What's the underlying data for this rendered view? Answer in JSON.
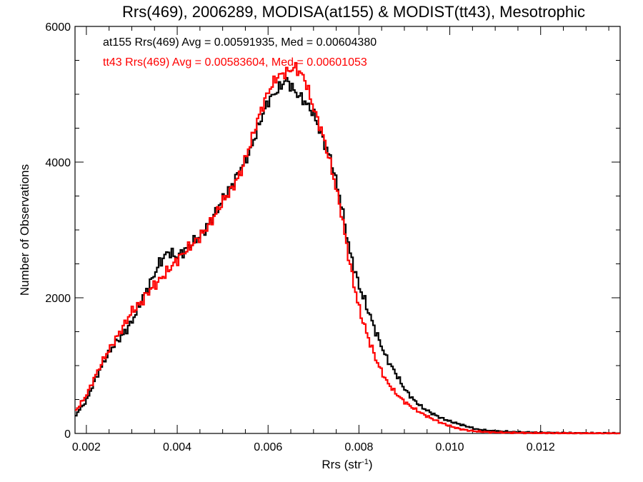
{
  "chart_data": {
    "type": "line",
    "title": "Rrs(469), 2006289, MODISA(at155) & MODIST(tt43), Mesotrophic",
    "xlabel": "Rrs (str",
    "xlabel_sup": "-1",
    "xlabel_close": ")",
    "ylabel": "Number of Observations",
    "xlim": [
      0.00175,
      0.01375
    ],
    "ylim": [
      0,
      6000
    ],
    "x_ticks": [
      {
        "value": 0.002,
        "label": "0.002"
      },
      {
        "value": 0.004,
        "label": "0.004"
      },
      {
        "value": 0.006,
        "label": "0.006"
      },
      {
        "value": 0.008,
        "label": "0.008"
      },
      {
        "value": 0.01,
        "label": "0.010"
      },
      {
        "value": 0.012,
        "label": "0.012"
      }
    ],
    "y_ticks": [
      {
        "value": 0,
        "label": "0"
      },
      {
        "value": 2000,
        "label": "2000"
      },
      {
        "value": 4000,
        "label": "4000"
      },
      {
        "value": 6000,
        "label": "6000"
      }
    ],
    "step": "histogram",
    "series": [
      {
        "name": "at155",
        "color": "#000000",
        "annotation": "at155 Rrs(469) Avg = 0.00591935, Med = 0.00604380",
        "points": [
          [
            0.00175,
            260
          ],
          [
            0.002,
            480
          ],
          [
            0.0022,
            800
          ],
          [
            0.0024,
            1080
          ],
          [
            0.0026,
            1300
          ],
          [
            0.0028,
            1450
          ],
          [
            0.003,
            1640
          ],
          [
            0.0032,
            1950
          ],
          [
            0.0034,
            2200
          ],
          [
            0.0036,
            2500
          ],
          [
            0.0038,
            2680
          ],
          [
            0.004,
            2600
          ],
          [
            0.0042,
            2720
          ],
          [
            0.0044,
            2850
          ],
          [
            0.0046,
            2990
          ],
          [
            0.0048,
            3200
          ],
          [
            0.005,
            3450
          ],
          [
            0.0052,
            3650
          ],
          [
            0.0054,
            3900
          ],
          [
            0.0056,
            4150
          ],
          [
            0.0058,
            4550
          ],
          [
            0.006,
            4900
          ],
          [
            0.0062,
            5050
          ],
          [
            0.0064,
            5220
          ],
          [
            0.0066,
            5030
          ],
          [
            0.0068,
            4900
          ],
          [
            0.007,
            4720
          ],
          [
            0.0072,
            4350
          ],
          [
            0.0074,
            4000
          ],
          [
            0.0076,
            3420
          ],
          [
            0.0078,
            2680
          ],
          [
            0.008,
            2180
          ],
          [
            0.0082,
            1820
          ],
          [
            0.0084,
            1450
          ],
          [
            0.0086,
            1120
          ],
          [
            0.0088,
            900
          ],
          [
            0.009,
            660
          ],
          [
            0.0092,
            500
          ],
          [
            0.0094,
            380
          ],
          [
            0.0096,
            300
          ],
          [
            0.0098,
            230
          ],
          [
            0.01,
            180
          ],
          [
            0.0102,
            140
          ],
          [
            0.0104,
            100
          ],
          [
            0.0106,
            60
          ],
          [
            0.0108,
            45
          ],
          [
            0.011,
            35
          ],
          [
            0.0114,
            22
          ],
          [
            0.0118,
            15
          ],
          [
            0.0122,
            10
          ],
          [
            0.0126,
            6
          ],
          [
            0.013,
            4
          ],
          [
            0.01375,
            2
          ]
        ]
      },
      {
        "name": "tt43",
        "color": "#ff0000",
        "annotation": "tt43 Rrs(469) Avg = 0.00583604, Med = 0.00601053",
        "points": [
          [
            0.00175,
            320
          ],
          [
            0.002,
            560
          ],
          [
            0.0022,
            850
          ],
          [
            0.0024,
            1120
          ],
          [
            0.0026,
            1340
          ],
          [
            0.0028,
            1560
          ],
          [
            0.003,
            1800
          ],
          [
            0.0032,
            1920
          ],
          [
            0.0034,
            2120
          ],
          [
            0.0036,
            2250
          ],
          [
            0.0038,
            2400
          ],
          [
            0.004,
            2560
          ],
          [
            0.0042,
            2700
          ],
          [
            0.0044,
            2830
          ],
          [
            0.0046,
            2980
          ],
          [
            0.0048,
            3180
          ],
          [
            0.005,
            3420
          ],
          [
            0.0052,
            3600
          ],
          [
            0.0054,
            3850
          ],
          [
            0.0056,
            4250
          ],
          [
            0.0058,
            4680
          ],
          [
            0.006,
            5030
          ],
          [
            0.0062,
            5260
          ],
          [
            0.0064,
            5320
          ],
          [
            0.0066,
            5400
          ],
          [
            0.0068,
            5240
          ],
          [
            0.007,
            4800
          ],
          [
            0.0072,
            4420
          ],
          [
            0.0074,
            3900
          ],
          [
            0.0076,
            3300
          ],
          [
            0.0078,
            2500
          ],
          [
            0.008,
            1850
          ],
          [
            0.0082,
            1420
          ],
          [
            0.0084,
            1050
          ],
          [
            0.0086,
            780
          ],
          [
            0.0088,
            600
          ],
          [
            0.009,
            470
          ],
          [
            0.0092,
            370
          ],
          [
            0.0094,
            290
          ],
          [
            0.0096,
            220
          ],
          [
            0.0098,
            160
          ],
          [
            0.01,
            110
          ],
          [
            0.0102,
            70
          ],
          [
            0.0104,
            45
          ],
          [
            0.0106,
            30
          ],
          [
            0.0108,
            22
          ],
          [
            0.011,
            16
          ],
          [
            0.0114,
            10
          ],
          [
            0.0118,
            7
          ],
          [
            0.0122,
            5
          ],
          [
            0.0126,
            3
          ],
          [
            0.013,
            2
          ],
          [
            0.01375,
            1
          ]
        ]
      }
    ]
  }
}
